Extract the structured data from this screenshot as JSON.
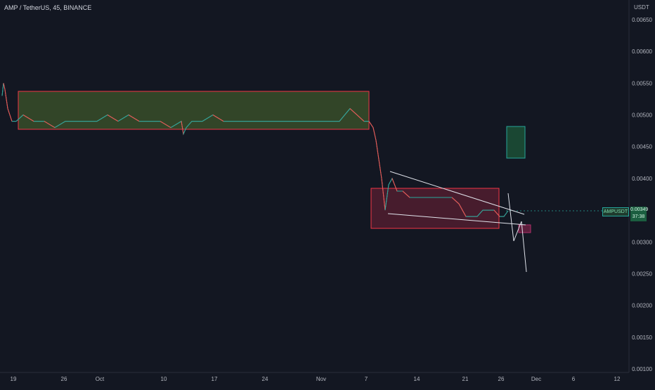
{
  "header": {
    "title": "AMP / TetherUS, 45, BINANCE",
    "unit": "USDT"
  },
  "price_label": {
    "symbol": "AMPUSDT",
    "price": "0.00349",
    "countdown": "37:38",
    "color": "#26a69a"
  },
  "colors": {
    "background": "#131722",
    "up": "#26a69a",
    "down": "#ef5350",
    "zone_green_fill": "#4d6b2e",
    "zone_red_fill": "#6b1f36",
    "zone_border": "#f23645",
    "target_box": "#1e5c3a",
    "lines": "#e0e3eb"
  },
  "chart_data": {
    "type": "line",
    "y_axis_ticks": [
      "0.00650",
      "0.00600",
      "0.00550",
      "0.00500",
      "0.00450",
      "0.00400",
      "0.00300",
      "0.00250",
      "0.00200",
      "0.00150",
      "0.00100"
    ],
    "x_axis_ticks": [
      "19",
      "26",
      "Oct",
      "10",
      "17",
      "24",
      "Nov",
      "7",
      "14",
      "21",
      "26",
      "Dec",
      "6",
      "12"
    ],
    "ylim": [
      0.001,
      0.0067
    ],
    "series": [
      {
        "x": [
          0,
          2,
          4,
          8,
          14,
          20,
          30,
          45,
          60,
          75,
          90,
          105,
          120,
          135,
          150,
          165,
          180,
          195,
          210,
          225,
          240,
          255,
          258,
          262,
          270,
          285,
          300,
          315,
          330,
          345,
          360,
          375,
          390,
          405,
          420,
          435,
          450,
          465,
          480,
          495,
          505,
          515,
          522,
          528,
          532,
          536,
          540,
          545,
          550,
          555,
          562,
          570,
          580,
          590,
          600,
          610,
          620,
          630,
          640,
          650,
          660,
          668,
          676,
          684,
          692,
          700,
          708,
          714,
          720
        ],
        "values": [
          0.0053,
          0.0055,
          0.0054,
          0.0051,
          0.0049,
          0.0049,
          0.005,
          0.0049,
          0.0049,
          0.0048,
          0.0049,
          0.0049,
          0.0049,
          0.0049,
          0.005,
          0.0049,
          0.005,
          0.0049,
          0.0049,
          0.0049,
          0.0048,
          0.0049,
          0.0047,
          0.0048,
          0.0049,
          0.0049,
          0.005,
          0.0049,
          0.0049,
          0.0049,
          0.0049,
          0.0049,
          0.0049,
          0.0049,
          0.0049,
          0.0049,
          0.0049,
          0.0049,
          0.0049,
          0.0051,
          0.005,
          0.0049,
          0.0049,
          0.0048,
          0.0046,
          0.0043,
          0.004,
          0.0035,
          0.0039,
          0.004,
          0.0038,
          0.0038,
          0.0037,
          0.0037,
          0.0037,
          0.0037,
          0.0037,
          0.0037,
          0.0037,
          0.0036,
          0.0034,
          0.0034,
          0.0034,
          0.0035,
          0.0035,
          0.0035,
          0.0034,
          0.0034,
          0.00349
        ]
      }
    ]
  }
}
